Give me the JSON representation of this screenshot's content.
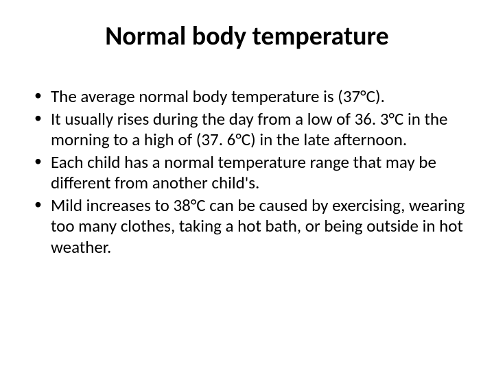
{
  "slide": {
    "title": "Normal body temperature",
    "title_fontsize": 38,
    "title_fontweight": "bold",
    "title_align": "center",
    "bullets": [
      "The average normal body temperature is (37°C).",
      "It usually rises during the day from a low of 36. 3°C in the morning to a high of (37. 6°C) in the late afternoon.",
      "Each child has a normal temperature range that may be different from another child's.",
      "Mild increases to 38°C can be caused by exercising, wearing too many clothes, taking a hot bath, or being outside in hot weather."
    ],
    "body_fontsize": 25,
    "font_family": "Calibri",
    "text_color": "#000000",
    "background_color": "#ffffff"
  }
}
